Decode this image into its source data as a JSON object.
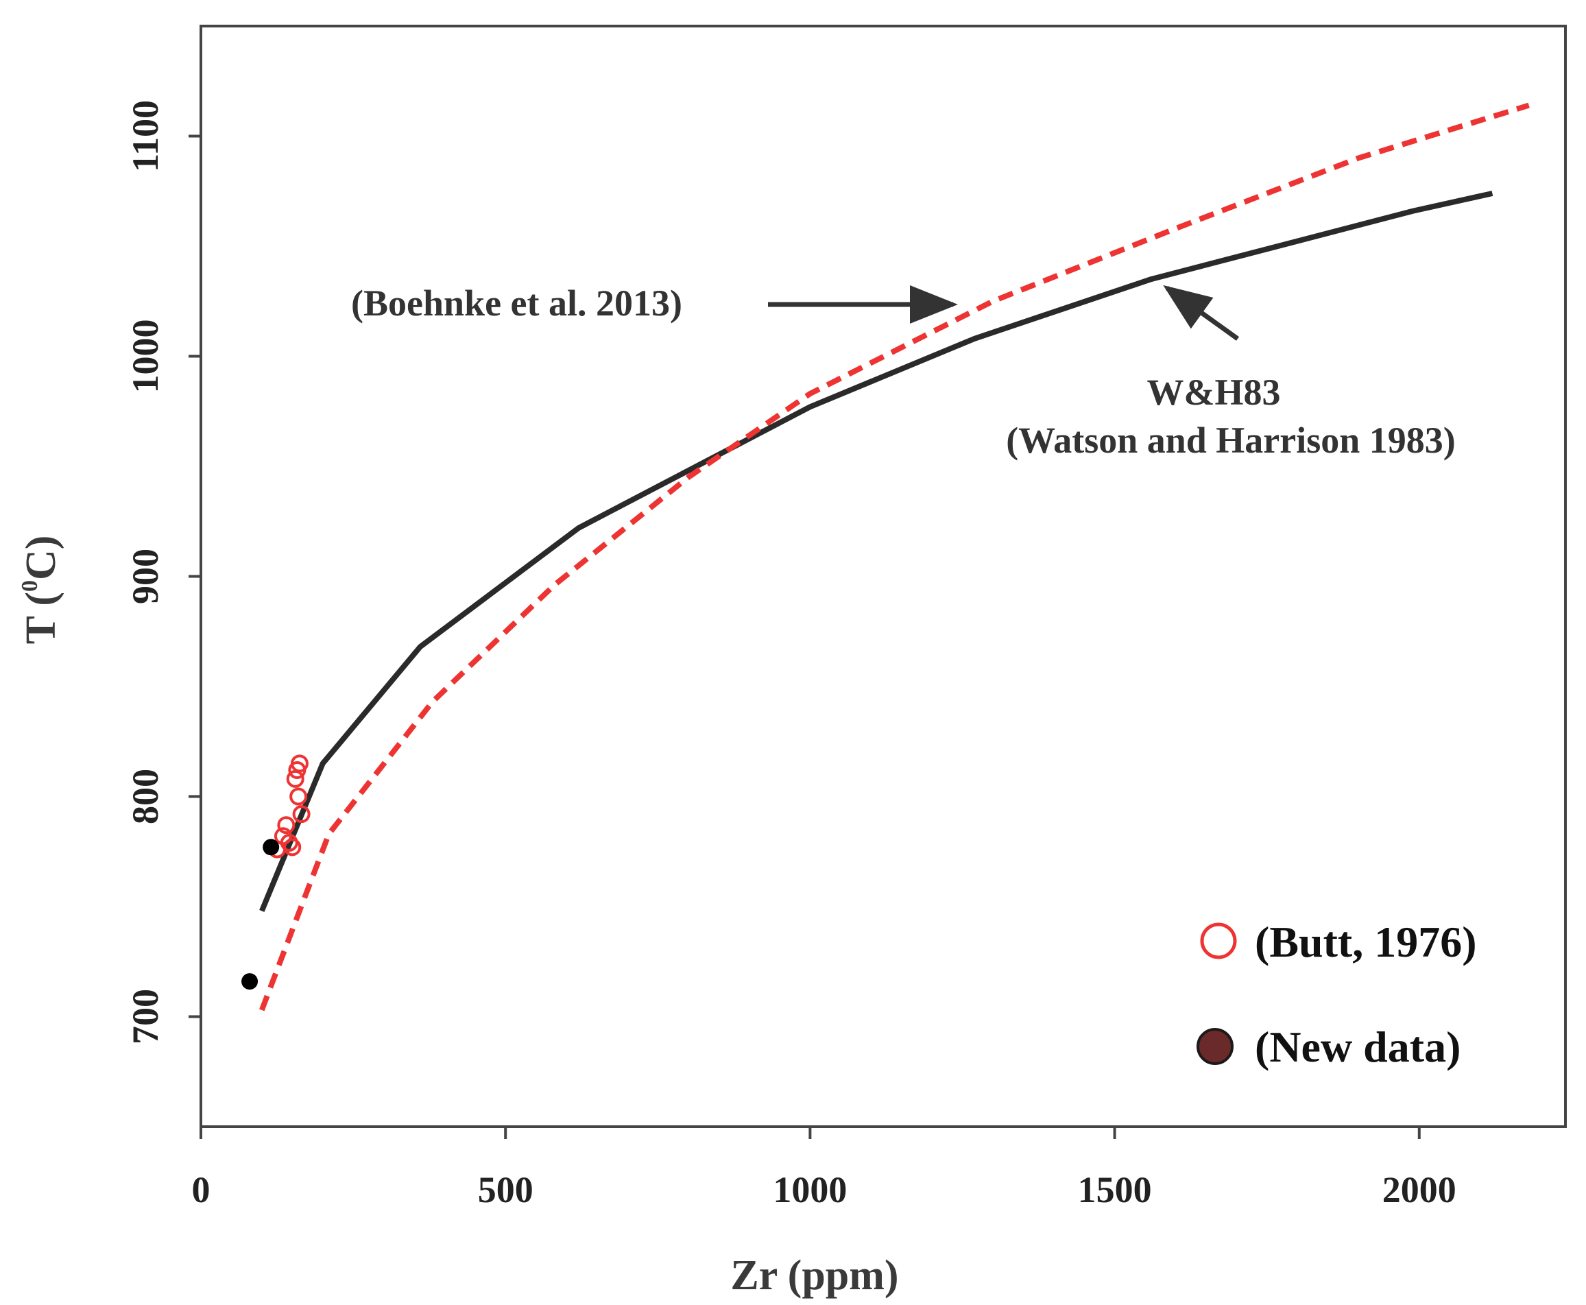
{
  "chart_data": {
    "type": "scatter",
    "xlabel": "Zr (ppm)",
    "ylabel_main": "T (",
    "ylabel_sup": "0",
    "ylabel_unit": "C)",
    "xlim": [
      0,
      2240
    ],
    "ylim": [
      650,
      1150
    ],
    "xticks": [
      0,
      500,
      1000,
      1500,
      2000
    ],
    "yticks": [
      700,
      800,
      900,
      1000,
      1100
    ],
    "colors": {
      "black": "#2a2a2a",
      "red": "#ee3333",
      "brown": "#6b2a2a"
    },
    "series": [
      {
        "name": "W&H83 (Watson and Harrison 1983)",
        "style": "solid",
        "x": [
          100,
          200,
          360,
          620,
          1000,
          1270,
          1560,
          1990,
          2120
        ],
        "y": [
          748,
          815,
          868,
          922,
          977,
          1008,
          1035,
          1066,
          1074
        ]
      },
      {
        "name": "Boehnke et al. 2013",
        "style": "dashed",
        "x": [
          100,
          210,
          380,
          580,
          800,
          1000,
          1300,
          1600,
          1900,
          2180
        ],
        "y": [
          703,
          783,
          843,
          896,
          945,
          983,
          1025,
          1058,
          1090,
          1114
        ]
      },
      {
        "name": "(Butt, 1976)",
        "marker": "open-circle",
        "x": [
          125,
          135,
          140,
          145,
          150,
          155,
          160,
          165,
          162,
          158
        ],
        "y": [
          776,
          782,
          787,
          779,
          777,
          808,
          800,
          792,
          815,
          812
        ]
      },
      {
        "name": "(New data)",
        "marker": "filled-circle",
        "x": [
          80,
          115
        ],
        "y": [
          716,
          777
        ]
      }
    ],
    "annotations": {
      "boehnke": "(Boehnke et al. 2013)",
      "wh_line1": "W&H83",
      "wh_line2": "(Watson and Harrison 1983)"
    },
    "legend": {
      "butt": "(Butt, 1976)",
      "new": "(New data)"
    }
  }
}
